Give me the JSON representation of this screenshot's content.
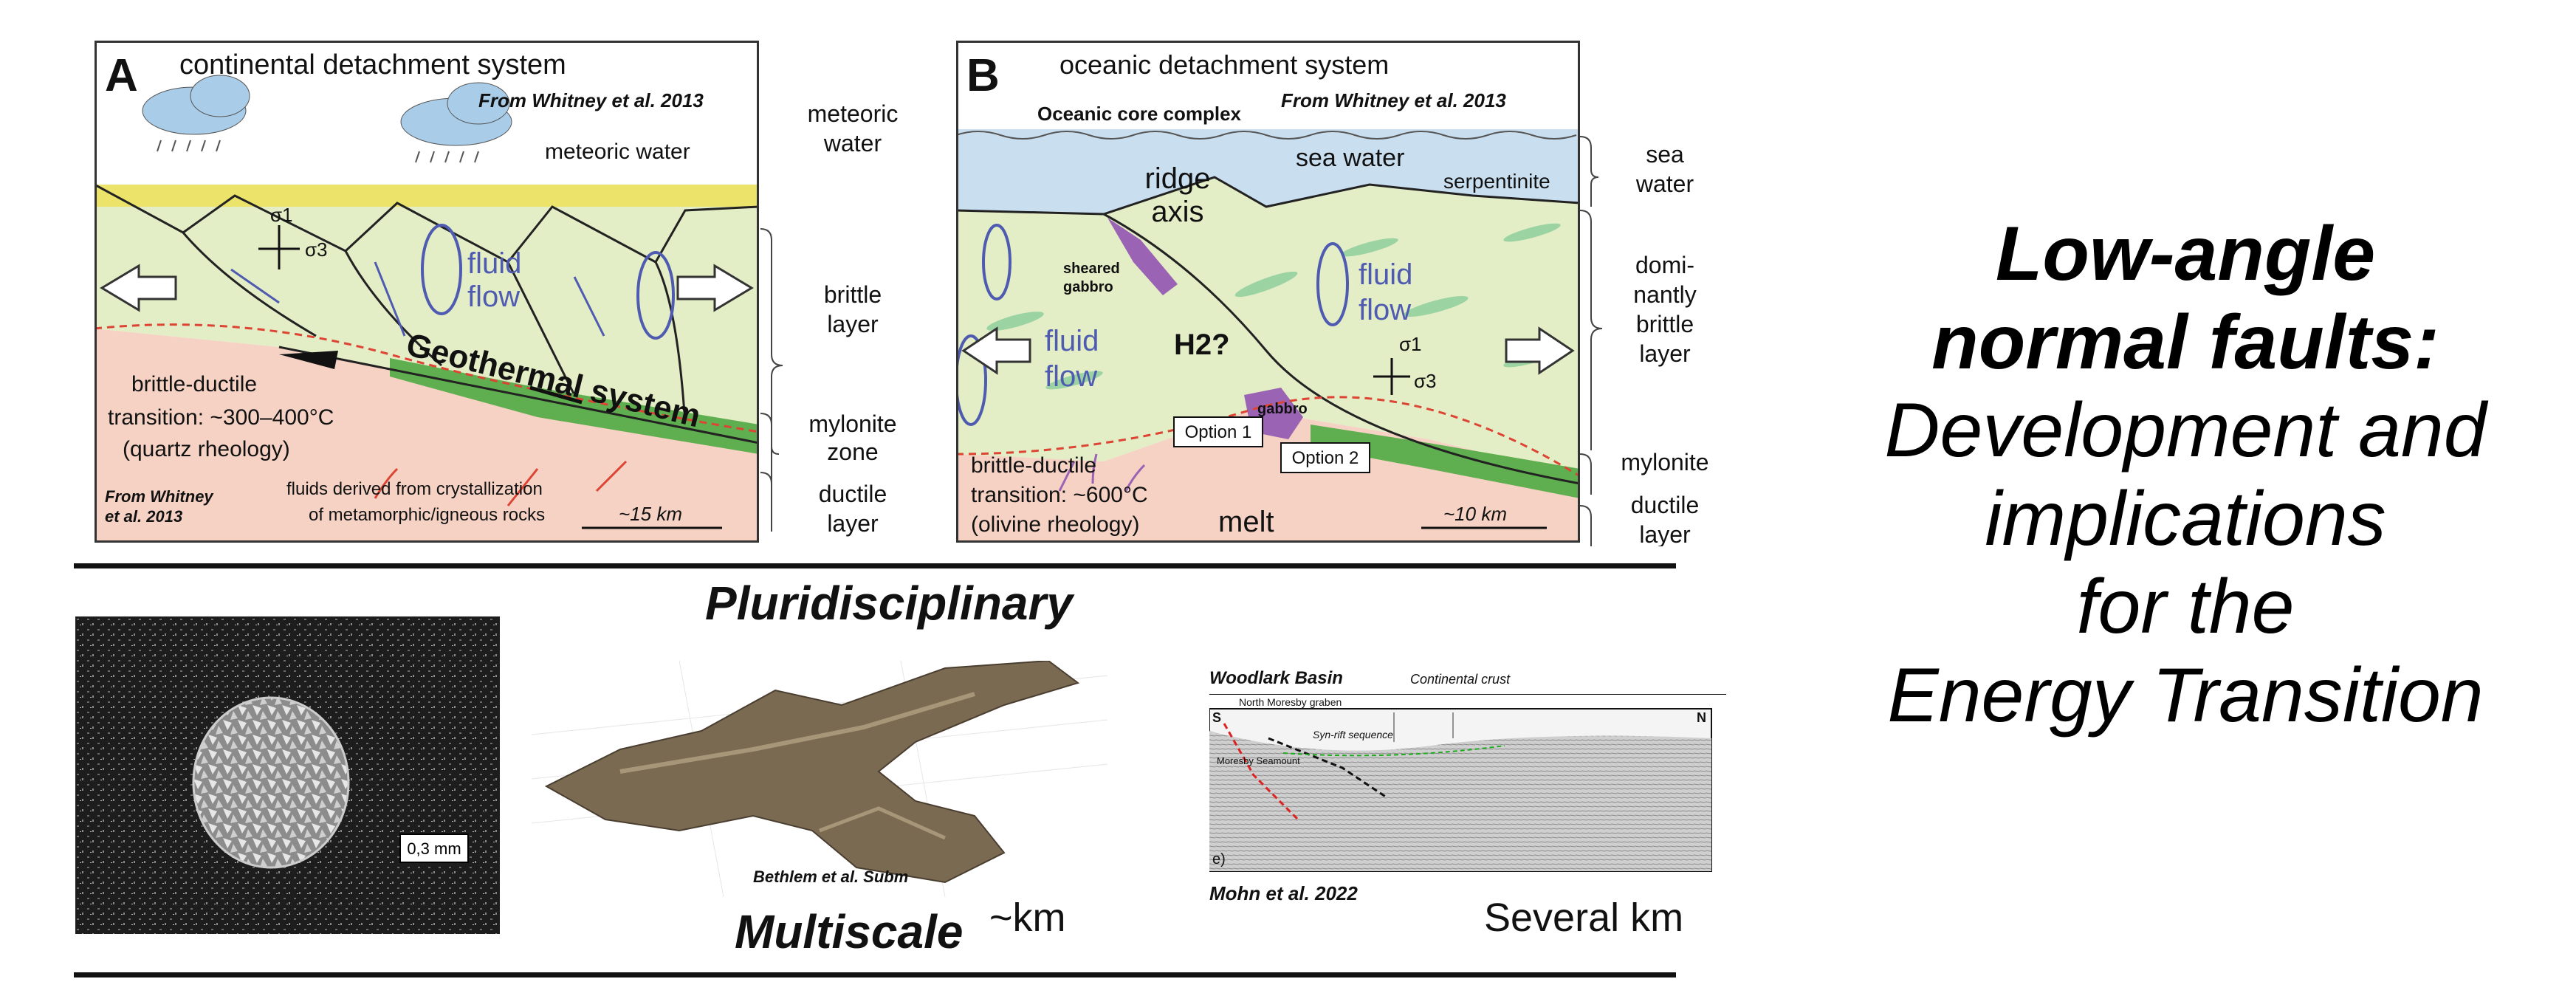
{
  "panel_a": {
    "letter": "A",
    "title": "continental detachment system",
    "credit": "From Whitney et al. 2013",
    "meteoric_water": "meteoric water",
    "sigma1": "σ1",
    "sigma3": "σ3",
    "fluid": "fluid",
    "flow": "flow",
    "brittle_ductile": "brittle-ductile",
    "transition": "transition: ~300–400°C",
    "quartz": "(quartz rheology)",
    "geothermal": "Geothermal system",
    "fluids_derived_1": "fluids derived from crystallization",
    "fluids_derived_2": "of metamorphic/igneous rocks",
    "credit2_1": "From Whitney",
    "credit2_2": "et al. 2013",
    "scale": "~15 km",
    "side_meteoric_1": "meteoric",
    "side_meteoric_2": "water",
    "side_brittle_1": "brittle",
    "side_brittle_2": "layer",
    "side_mylonite_1": "mylonite",
    "side_mylonite_2": "zone",
    "side_ductile_1": "ductile",
    "side_ductile_2": "layer"
  },
  "panel_b": {
    "letter": "B",
    "title": "oceanic detachment system",
    "credit": "From Whitney et al. 2013",
    "occ": "Oceanic core complex",
    "ridge_1": "ridge",
    "ridge_2": "axis",
    "sea_water": "sea water",
    "serpentinite": "serpentinite",
    "sheared_1": "sheared",
    "sheared_2": "gabbro",
    "fluid": "fluid",
    "flow": "flow",
    "h2": "H2?",
    "gabbro": "gabbro",
    "option1": "Option 1",
    "option2": "Option 2",
    "sigma1": "σ1",
    "sigma3": "σ3",
    "brittle_ductile": "brittle-ductile",
    "transition": "transition: ~600°C",
    "olivine": "(olivine rheology)",
    "melt": "melt",
    "scale": "~10 km",
    "side_sea_1": "sea",
    "side_sea_2": "water",
    "side_brittle_1": "domi-",
    "side_brittle_2": "nantly",
    "side_brittle_3": "brittle",
    "side_brittle_4": "layer",
    "side_mylonite": "mylonite",
    "side_ductile_1": "ductile",
    "side_ductile_2": "layer"
  },
  "middle": {
    "pluridisciplinary": "Pluridisciplinary",
    "multiscale": "Multiscale",
    "km": "~km",
    "several_km": "Several km",
    "micro_scale": "0,3 mm",
    "bethlem": "Bethlem et al. Subm",
    "woodlark": "Woodlark Basin",
    "continental_crust": "Continental crust",
    "north_moresby": "North Moresby graben",
    "synrift": "Syn-rift sequence",
    "moresby_seamount": "Moresby Seamount",
    "mohn": "Mohn et al. 2022",
    "seis_s": "S",
    "seis_n": "N",
    "seis_e": "e)"
  },
  "title": {
    "line1": "Low-angle",
    "line2": "normal faults:",
    "line3": "Development and",
    "line4": "implications",
    "line5": "for the",
    "line6": "Energy Transition"
  },
  "colors": {
    "brittle": "#e3edc6",
    "ductile": "#f5d2c4",
    "sea": "#c9dff0",
    "sediment": "#ece46a",
    "mylonite": "#5fae4f",
    "fluid": "#4e5bb0",
    "gabbro": "#9a63b4"
  }
}
